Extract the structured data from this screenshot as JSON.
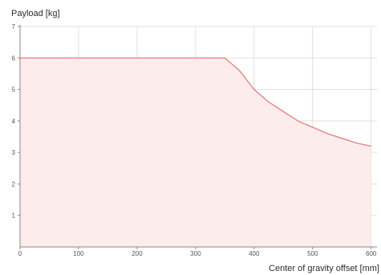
{
  "chart_data": {
    "type": "area",
    "title": "",
    "xlabel": "Center of gravity offset [mm]",
    "ylabel": "Payload [kg]",
    "xlim": [
      0,
      610
    ],
    "ylim": [
      0,
      7
    ],
    "xticks": [
      0,
      100,
      200,
      300,
      400,
      500,
      600
    ],
    "xtick_labels": [
      "0",
      "100",
      "200",
      "300",
      "400",
      "500",
      "600"
    ],
    "yticks": [
      1,
      2,
      3,
      4,
      5,
      6,
      7
    ],
    "ytick_labels": [
      "1",
      "2",
      "3",
      "4",
      "5",
      "6",
      "7"
    ],
    "grid": true,
    "legend": "none",
    "series": [
      {
        "x": [
          0,
          50,
          100,
          150,
          200,
          250,
          300,
          350,
          375,
          400,
          425,
          450,
          475,
          500,
          525,
          550,
          575,
          600
        ],
        "y": [
          6.0,
          6.0,
          6.0,
          6.0,
          6.0,
          6.0,
          6.0,
          6.0,
          5.6,
          5.0,
          4.6,
          4.3,
          4.0,
          3.8,
          3.6,
          3.45,
          3.3,
          3.2
        ]
      }
    ],
    "line_color": "#e07272",
    "fill_color": "#fdecec",
    "grid_color": "#d9d9d9",
    "axis_color": "#888888"
  }
}
